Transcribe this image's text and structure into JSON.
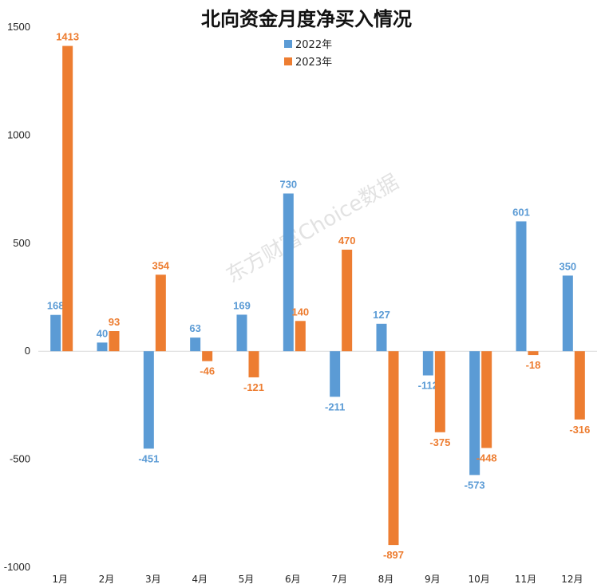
{
  "chart_data": {
    "type": "bar",
    "title": "北向资金月度净买入情况",
    "watermark": "东方财富Choice数据",
    "categories": [
      "1月",
      "2月",
      "3月",
      "4月",
      "5月",
      "6月",
      "7月",
      "8月",
      "9月",
      "10月",
      "11月",
      "12月"
    ],
    "series": [
      {
        "name": "2022年",
        "color": "#5b9bd5",
        "values": [
          168,
          40,
          -451,
          63,
          169,
          730,
          -211,
          127,
          -112,
          -573,
          601,
          350
        ]
      },
      {
        "name": "2023年",
        "color": "#ed7d31",
        "values": [
          1413,
          93,
          354,
          -46,
          -121,
          140,
          470,
          -897,
          -375,
          -448,
          -18,
          -316
        ]
      }
    ],
    "ylim": [
      -1000,
      1500
    ],
    "yticks": [
      1500,
      1000,
      500,
      0,
      -500,
      -1000
    ],
    "legend_position": "top-center",
    "grid": false
  }
}
